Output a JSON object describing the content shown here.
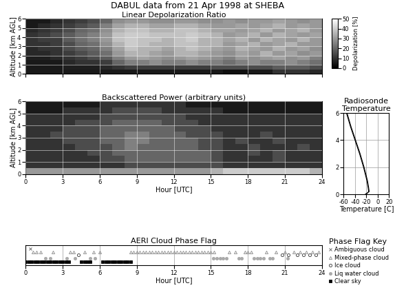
{
  "title": "DABUL data from 21 Apr 1998 at SHEBA",
  "chart_data": [
    {
      "type": "heatmap",
      "title": "Linear Depolarization Ratio",
      "y_label": "Altitude [km AGL]",
      "xlim": [
        0,
        24
      ],
      "xticks": [
        0,
        3,
        6,
        9,
        12,
        15,
        18,
        21,
        24
      ],
      "ylim": [
        0,
        6
      ],
      "yticks": [
        0,
        1,
        2,
        3,
        4,
        5,
        6
      ],
      "grid": true,
      "tick_labels": "y",
      "x_edges": [
        0,
        1,
        2,
        3,
        4,
        5,
        6,
        7,
        8,
        9,
        10,
        11,
        12,
        13,
        14,
        15,
        16,
        17,
        18,
        19,
        20,
        21,
        22,
        23,
        24
      ],
      "y_edges": [
        0,
        0.5,
        1,
        1.5,
        2,
        2.5,
        3,
        3.5,
        4,
        4.5,
        5,
        5.5,
        6
      ],
      "cells": [
        [
          5,
          5,
          5,
          5,
          5,
          5,
          5,
          5,
          5,
          5,
          5,
          5,
          5,
          5,
          5,
          5,
          3,
          3,
          5,
          5,
          10,
          10,
          10,
          8
        ],
        [
          5,
          5,
          5,
          6,
          6,
          6,
          8,
          10,
          12,
          12,
          12,
          12,
          12,
          12,
          12,
          15,
          15,
          15,
          15,
          15,
          18,
          18,
          18,
          15
        ],
        [
          5,
          5,
          5,
          8,
          10,
          10,
          12,
          20,
          25,
          25,
          28,
          25,
          25,
          28,
          25,
          25,
          22,
          25,
          28,
          25,
          25,
          28,
          25,
          22
        ],
        [
          6,
          6,
          8,
          10,
          12,
          15,
          18,
          25,
          30,
          32,
          30,
          28,
          30,
          32,
          30,
          28,
          25,
          30,
          28,
          30,
          32,
          28,
          30,
          25
        ],
        [
          8,
          8,
          10,
          12,
          15,
          18,
          22,
          30,
          35,
          35,
          32,
          30,
          35,
          35,
          32,
          30,
          28,
          32,
          30,
          35,
          30,
          32,
          28,
          30
        ],
        [
          8,
          10,
          10,
          15,
          18,
          20,
          25,
          32,
          38,
          35,
          35,
          32,
          35,
          38,
          35,
          32,
          30,
          35,
          32,
          30,
          35,
          30,
          32,
          28
        ],
        [
          10,
          10,
          12,
          15,
          20,
          22,
          28,
          35,
          40,
          38,
          35,
          35,
          38,
          38,
          35,
          35,
          30,
          32,
          35,
          30,
          32,
          35,
          30,
          30
        ],
        [
          10,
          12,
          12,
          18,
          22,
          25,
          30,
          38,
          40,
          38,
          38,
          35,
          38,
          40,
          35,
          35,
          32,
          35,
          30,
          35,
          32,
          30,
          35,
          30
        ],
        [
          10,
          12,
          15,
          18,
          22,
          25,
          30,
          38,
          40,
          40,
          38,
          38,
          38,
          40,
          38,
          35,
          30,
          32,
          35,
          30,
          35,
          32,
          30,
          32
        ],
        [
          8,
          10,
          12,
          15,
          20,
          22,
          28,
          35,
          38,
          38,
          35,
          35,
          38,
          38,
          35,
          32,
          32,
          30,
          32,
          35,
          30,
          32,
          35,
          30
        ],
        [
          5,
          8,
          10,
          12,
          15,
          18,
          25,
          32,
          35,
          35,
          32,
          32,
          35,
          35,
          32,
          30,
          30,
          32,
          30,
          32,
          35,
          30,
          32,
          30
        ],
        [
          5,
          5,
          8,
          10,
          12,
          15,
          20,
          28,
          30,
          30,
          28,
          28,
          30,
          30,
          28,
          28,
          30,
          28,
          30,
          30,
          32,
          30,
          28,
          30
        ]
      ],
      "colorbar_label": "Depolarization [%]",
      "colorbar_range": [
        0,
        50
      ],
      "colorbar_ticks": [
        0,
        10,
        20,
        30,
        40,
        50
      ]
    },
    {
      "type": "heatmap",
      "title": "Backscattered Power (arbitrary units)",
      "x_label": "Hour [UTC]",
      "y_label": "Altitude [km AGL]",
      "xlim": [
        0,
        24
      ],
      "xticks": [
        0,
        3,
        6,
        9,
        12,
        15,
        18,
        21,
        24
      ],
      "ylim": [
        0,
        6
      ],
      "yticks": [
        0,
        1,
        2,
        3,
        4,
        5,
        6
      ],
      "grid": true,
      "x_edges": [
        0,
        1,
        2,
        3,
        4,
        5,
        6,
        7,
        8,
        9,
        10,
        11,
        12,
        13,
        14,
        15,
        16,
        17,
        18,
        19,
        20,
        21,
        22,
        23,
        24
      ],
      "y_edges": [
        0,
        0.5,
        1,
        1.5,
        2,
        2.5,
        3,
        3.5,
        4,
        4.5,
        5,
        5.5,
        6
      ],
      "cells": [
        [
          6,
          6,
          6,
          6,
          6,
          6,
          6,
          6,
          6,
          6,
          6,
          6,
          6,
          6,
          6,
          7,
          8,
          8,
          8,
          8,
          8,
          8,
          8,
          7
        ],
        [
          2,
          2,
          2,
          2,
          2,
          2,
          2,
          2,
          3,
          3,
          3,
          3,
          3,
          3,
          3,
          3,
          2,
          2,
          2,
          2,
          2,
          2,
          2,
          2
        ],
        [
          2,
          2,
          2,
          2,
          2,
          2,
          3,
          3,
          4,
          4,
          4,
          4,
          4,
          4,
          4,
          3,
          2,
          2,
          2,
          2,
          3,
          2,
          2,
          2
        ],
        [
          2,
          2,
          2,
          2,
          2,
          3,
          3,
          4,
          4,
          4,
          4,
          4,
          4,
          4,
          4,
          3,
          2,
          2,
          3,
          2,
          3,
          2,
          2,
          2
        ],
        [
          2,
          2,
          2,
          2,
          3,
          3,
          3,
          4,
          5,
          4,
          4,
          4,
          4,
          4,
          3,
          3,
          2,
          2,
          3,
          2,
          2,
          2,
          3,
          2
        ],
        [
          2,
          2,
          2,
          3,
          3,
          3,
          4,
          4,
          5,
          5,
          4,
          4,
          4,
          4,
          3,
          3,
          2,
          3,
          2,
          2,
          3,
          2,
          2,
          2
        ],
        [
          2,
          2,
          3,
          3,
          3,
          3,
          4,
          4,
          5,
          5,
          4,
          4,
          4,
          3,
          3,
          3,
          2,
          2,
          2,
          3,
          2,
          2,
          2,
          2
        ],
        [
          2,
          2,
          2,
          3,
          3,
          3,
          4,
          4,
          4,
          4,
          4,
          4,
          3,
          3,
          3,
          2,
          2,
          2,
          2,
          2,
          2,
          2,
          2,
          2
        ],
        [
          2,
          2,
          2,
          2,
          3,
          3,
          3,
          4,
          4,
          4,
          4,
          3,
          3,
          3,
          2,
          2,
          2,
          2,
          2,
          2,
          2,
          2,
          2,
          2
        ],
        [
          2,
          2,
          2,
          2,
          2,
          2,
          3,
          3,
          3,
          3,
          3,
          3,
          3,
          2,
          2,
          2,
          2,
          2,
          2,
          2,
          2,
          2,
          2,
          2
        ],
        [
          1,
          1,
          1,
          2,
          2,
          2,
          2,
          3,
          3,
          3,
          3,
          2,
          2,
          2,
          2,
          2,
          1,
          1,
          1,
          1,
          1,
          1,
          1,
          1
        ],
        [
          1,
          1,
          1,
          1,
          1,
          1,
          2,
          2,
          2,
          2,
          2,
          2,
          2,
          1,
          1,
          1,
          1,
          1,
          1,
          1,
          1,
          1,
          1,
          1
        ]
      ],
      "clim": [
        0,
        10
      ]
    },
    {
      "type": "line",
      "title": "Radiosonde\nTemperature",
      "x_label": "Temperature [C]",
      "y_label": "Altitude [km AGL]",
      "xlim": [
        -60,
        20
      ],
      "xticks": [
        -60,
        -40,
        -20,
        0,
        20
      ],
      "ylim": [
        0,
        6
      ],
      "yticks": [
        0,
        2,
        4,
        6
      ],
      "grid": true,
      "series": [
        {
          "color": "#000000",
          "x": [
            -20,
            -16,
            -17,
            -19,
            -22,
            -25,
            -32,
            -40,
            -48,
            -55
          ],
          "values": [
            0,
            0.2,
            0.5,
            1,
            1.5,
            2,
            3,
            4,
            5,
            6
          ]
        },
        {
          "color": "#000000",
          "x": [
            -22,
            -15,
            -16,
            -18,
            -21,
            -24,
            -31,
            -39,
            -47,
            -54
          ],
          "values": [
            0,
            0.2,
            0.5,
            1,
            1.5,
            2,
            3,
            4,
            5,
            6
          ]
        }
      ]
    },
    {
      "type": "scatter",
      "title": "AERI Cloud Phase Flag",
      "x_label": "Hour [UTC]",
      "xlim": [
        0,
        24
      ],
      "xticks": [
        0,
        3,
        6,
        9,
        12,
        15,
        18,
        21,
        24
      ],
      "grid": true,
      "tick_labels": "x",
      "legend": "lower right",
      "key_title": "Phase Flag Key",
      "series": [
        {
          "name": "Ambiguous cloud",
          "marker": "x",
          "color": "#555555",
          "x": [
            0.4
          ]
        },
        {
          "name": "Mixed-phase cloud",
          "marker": "triangle",
          "color": "#888888",
          "x": [
            0.6,
            0.9,
            1.2,
            2.2,
            3.6,
            3.9,
            4.8,
            5.5,
            6.0,
            8.5,
            8.75,
            9.0,
            9.25,
            9.5,
            9.75,
            10.0,
            10.25,
            10.5,
            10.75,
            11.0,
            11.25,
            11.5,
            11.75,
            12.0,
            12.25,
            12.5,
            12.75,
            13.0,
            13.25,
            13.5,
            13.75,
            14.0,
            14.25,
            14.5,
            14.75,
            15.0,
            15.25,
            16.5,
            17.0,
            17.75,
            18.0,
            18.25,
            19.5,
            20.25,
            21.0,
            21.75,
            22.25,
            22.75,
            23.25,
            23.75
          ]
        },
        {
          "name": "Ice cloud",
          "marker": "circle",
          "color": "#333333",
          "x": [
            4.3,
            20.8,
            21.3,
            22.0,
            22.5,
            23.0,
            23.5
          ]
        },
        {
          "name": "Liq water cloud",
          "marker": "dot",
          "color": "#aaaaaa",
          "x": [
            1.6,
            2.0,
            3.3,
            4.0,
            5.2,
            5.6,
            15.2,
            15.5,
            15.75,
            16.0,
            16.25,
            17.25,
            17.5,
            18.5,
            18.75,
            19.0,
            19.25,
            19.75,
            20.0,
            21.25
          ]
        },
        {
          "name": "Clear sky",
          "marker": "square",
          "color": "#000000",
          "x": [
            0.0,
            0.25,
            0.5,
            0.75,
            1.0,
            1.25,
            1.5,
            1.75,
            2.0,
            2.25,
            2.5,
            2.75,
            3.0,
            3.25,
            3.5,
            4.5,
            4.75,
            5.0,
            5.25,
            6.25,
            6.5,
            6.75,
            7.0,
            7.25,
            7.5,
            7.75,
            8.0,
            8.25,
            8.5
          ]
        }
      ]
    }
  ]
}
